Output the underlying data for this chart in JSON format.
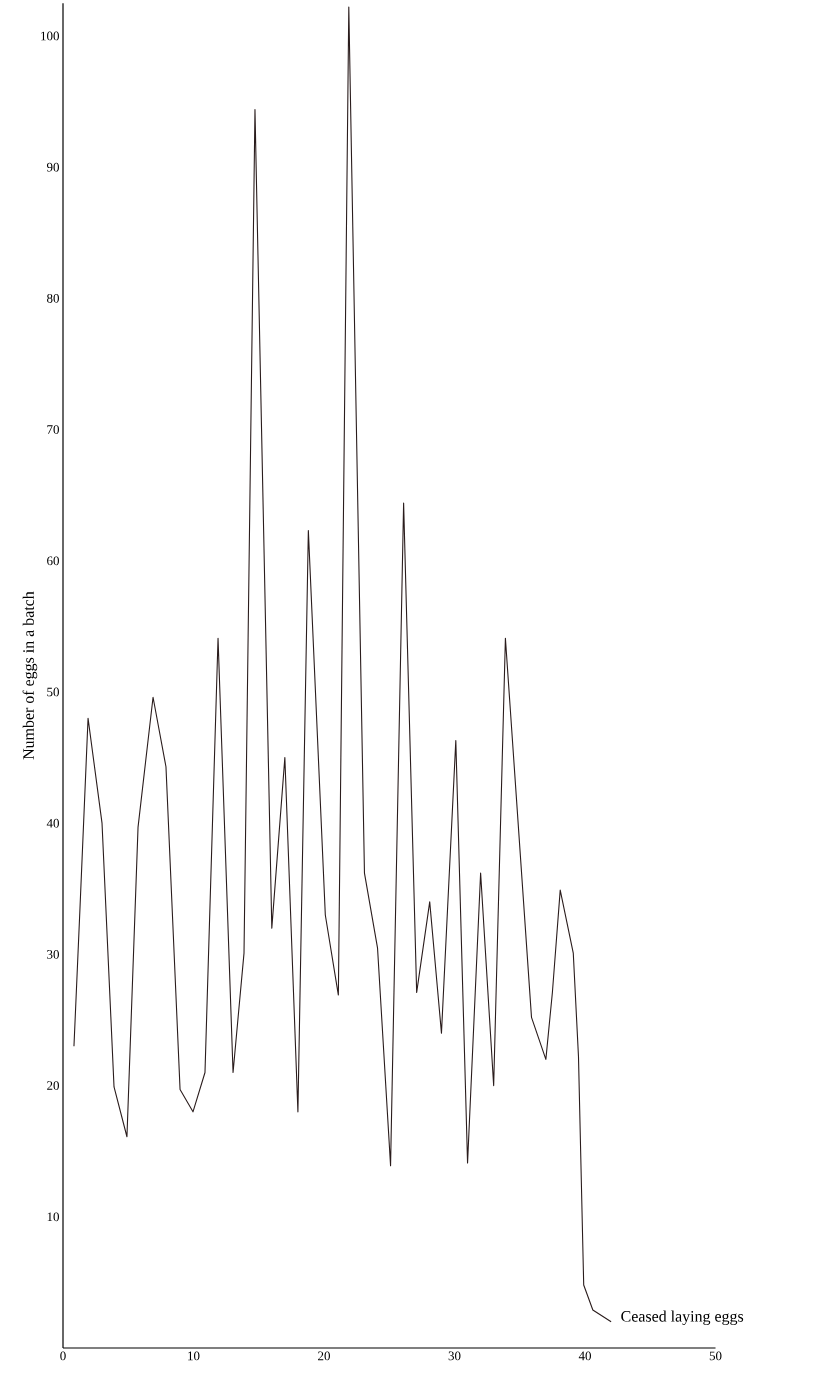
{
  "chart_data": {
    "type": "line",
    "ylabel": "Number of eggs in a batch",
    "x": [
      0.84,
      1.3,
      1.92,
      2.99,
      3.91,
      4.9,
      5.75,
      6.9,
      7.89,
      8.97,
      9.96,
      10.88,
      11.88,
      13.03,
      13.87,
      14.71,
      16.0,
      17.0,
      18.0,
      18.8,
      20.1,
      21.1,
      21.9,
      23.1,
      24.1,
      25.1,
      26.1,
      27.1,
      28.1,
      29.0,
      30.1,
      31.0,
      32.0,
      33.0,
      33.9,
      35.9,
      37.0,
      37.5,
      38.1,
      39.1,
      39.5,
      39.9,
      40.6,
      42.0
    ],
    "series": [
      {
        "color": "#2a1c1c",
        "values": [
          23.0,
          33.5,
          48.0,
          40.0,
          19.9,
          16.1,
          39.7,
          49.6,
          44.3,
          19.7,
          18.0,
          21.0,
          54.1,
          21.0,
          30.1,
          94.4,
          32.0,
          45.0,
          18.0,
          62.3,
          33.0,
          26.9,
          102.2,
          36.2,
          30.5,
          13.9,
          64.4,
          27.1,
          34.0,
          24.0,
          46.3,
          14.1,
          36.2,
          20.0,
          54.1,
          25.2,
          22.0,
          27.1,
          34.9,
          30.1,
          22.2,
          4.8,
          2.9,
          2.0
        ]
      }
    ],
    "xlim": [
      0,
      50
    ],
    "ylim": [
      0,
      102.5
    ],
    "xticks": [
      0,
      10,
      20,
      30,
      40,
      50
    ],
    "yticks": [
      10,
      20,
      30,
      40,
      50,
      60,
      70,
      80,
      90,
      100
    ],
    "marker": "none",
    "line_style": "solid",
    "annotations": [
      {
        "text": "Ceased laying eggs",
        "x": 42.0,
        "y": 2.0
      }
    ]
  }
}
